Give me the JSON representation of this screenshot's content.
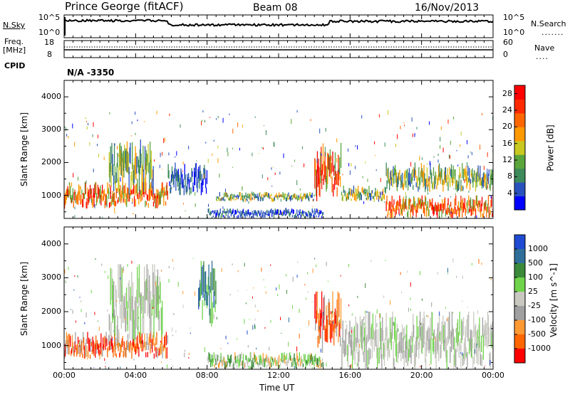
{
  "header": {
    "title": "Prince George (fitACF)",
    "beam": "Beam 08",
    "date": "16/Nov/2013"
  },
  "top_panels": {
    "nsky_label": "N.Sky",
    "nsearch_label": "N.Search",
    "nsky_ticks": [
      "10^5",
      "10^0"
    ],
    "nsearch_ticks": [
      "10^5",
      "10^0"
    ],
    "freq_label_1": "Freq.",
    "freq_label_2": "[MHz]",
    "freq_ticks": [
      "18",
      "8"
    ],
    "nave_label": "Nave",
    "nave_ticks": [
      "60",
      "0"
    ],
    "cpid_label": "CPID",
    "cpid_value": "N/A -3350"
  },
  "colors": {
    "power_scale": [
      "#0000ff",
      "#2a52be",
      "#3d8a5a",
      "#5aa53c",
      "#c8c820",
      "#ff9900",
      "#ff6600",
      "#ff2a00",
      "#ff0000"
    ],
    "velocity_scale": [
      "#1e4bd2",
      "#2f6f9a",
      "#3a8a3a",
      "#6fd44a",
      "#c8c8c0",
      "#a0a0a0",
      "#ff9933",
      "#ff6600",
      "#ff0000"
    ]
  },
  "chart_data": [
    {
      "type": "heatmap",
      "panel": "power",
      "ylabel": "Slant Range [km]",
      "ylim": [
        300,
        4500
      ],
      "yticks": [
        1000,
        2000,
        3000,
        4000
      ],
      "xlim": [
        0,
        24
      ],
      "colorbar_label": "Power [dB]",
      "colorbar_ticks": [
        "4",
        "8",
        "12",
        "16",
        "20",
        "24",
        "28"
      ],
      "colorbar_range": [
        0,
        30
      ],
      "features": [
        {
          "start": 0.0,
          "end": 5.8,
          "range_min": 600,
          "range_max": 1400,
          "level": "high"
        },
        {
          "start": 2.5,
          "end": 5.0,
          "range_min": 1000,
          "range_max": 2700,
          "level": "mid"
        },
        {
          "start": 5.8,
          "end": 8.0,
          "range_min": 1000,
          "range_max": 2000,
          "level": "low"
        },
        {
          "start": 8.0,
          "end": 14.5,
          "range_min": 300,
          "range_max": 600,
          "level": "low"
        },
        {
          "start": 8.5,
          "end": 14.0,
          "range_min": 800,
          "range_max": 1100,
          "level": "mid"
        },
        {
          "start": 14.0,
          "end": 15.5,
          "range_min": 800,
          "range_max": 2600,
          "level": "high"
        },
        {
          "start": 15.5,
          "end": 18.0,
          "range_min": 800,
          "range_max": 1300,
          "level": "mid"
        },
        {
          "start": 18.0,
          "end": 24.0,
          "range_min": 300,
          "range_max": 1000,
          "level": "high"
        },
        {
          "start": 18.0,
          "end": 24.0,
          "range_min": 1100,
          "range_max": 2000,
          "level": "mid"
        }
      ]
    },
    {
      "type": "heatmap",
      "panel": "velocity",
      "ylabel": "Slant Range [km]",
      "xlabel": "Time UT",
      "ylim": [
        300,
        4500
      ],
      "yticks": [
        1000,
        2000,
        3000,
        4000
      ],
      "xlim": [
        0,
        24
      ],
      "xticks": [
        "00:00",
        "04:00",
        "08:00",
        "12:00",
        "16:00",
        "20:00",
        "00:00"
      ],
      "xtick_hours": [
        0,
        4,
        8,
        12,
        16,
        20,
        24
      ],
      "colorbar_label": "Velocity [m s^-1]",
      "colorbar_ticks": [
        "1000",
        "500",
        "100",
        "25",
        "-25",
        "-100",
        "-500",
        "-1000"
      ],
      "features": [
        {
          "start": 0.0,
          "end": 5.8,
          "range_min": 600,
          "range_max": 1400,
          "level": "negative"
        },
        {
          "start": 2.5,
          "end": 5.5,
          "range_min": 1000,
          "range_max": 3400,
          "level": "zero"
        },
        {
          "start": 7.5,
          "end": 8.5,
          "range_min": 1500,
          "range_max": 3500,
          "level": "positive"
        },
        {
          "start": 8.0,
          "end": 14.5,
          "range_min": 300,
          "range_max": 800,
          "level": "small_positive"
        },
        {
          "start": 14.0,
          "end": 15.5,
          "range_min": 700,
          "range_max": 2600,
          "level": "negative"
        },
        {
          "start": 15.5,
          "end": 24.0,
          "range_min": 300,
          "range_max": 2000,
          "level": "zero"
        }
      ]
    }
  ]
}
